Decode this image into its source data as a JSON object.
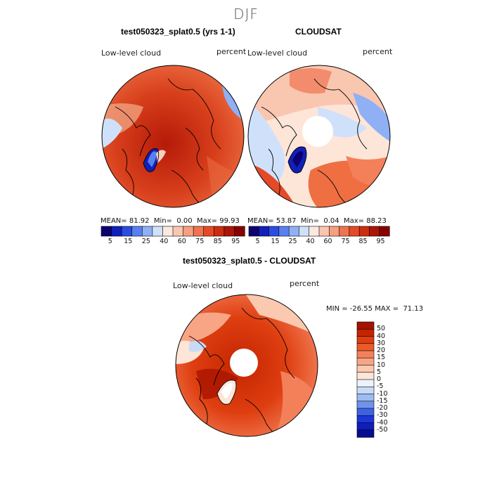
{
  "main_title": "DJF",
  "panels": [
    {
      "title": "test050323_splat0.5 (yrs 1-1)",
      "variable": "Low-level cloud",
      "units": "percent",
      "mean_label": "MEAN=",
      "mean": "81.92",
      "min_label": "Min=",
      "min": "0.00",
      "max_label": "Max=",
      "max": "99.93"
    },
    {
      "title": "CLOUDSAT",
      "variable": "Low-level cloud",
      "units": "percent",
      "mean_label": "MEAN=",
      "mean": "53.87",
      "min_label": "Min=",
      "min": "0.04",
      "max_label": "Max=",
      "max": "88.23"
    },
    {
      "title": "test050323_splat0.5 - CLOUDSAT",
      "variable": "Low-level cloud",
      "units": "percent",
      "min_max_text": "MIN = -26.55 MAX =  71.13"
    }
  ],
  "colorbar_top": {
    "colors": [
      "#0d0070",
      "#1020b8",
      "#2a4de0",
      "#5a7ff0",
      "#8fb0f5",
      "#cfe1fa",
      "#fbe8e0",
      "#f9c6b0",
      "#f5a080",
      "#ef7450",
      "#e44a28",
      "#cc2d10",
      "#aa1505",
      "#860000"
    ],
    "tick_labels": [
      "5",
      "15",
      "25",
      "40",
      "60",
      "75",
      "85",
      "95"
    ]
  },
  "colorbar_diff": {
    "colors": [
      "#a51200",
      "#c42500",
      "#de3e10",
      "#ec5a28",
      "#f4805a",
      "#f8a585",
      "#fbc8b0",
      "#fde5d8",
      "#eef3fb",
      "#c8dbf6",
      "#9fbcf2",
      "#6e93ec",
      "#3f62e5",
      "#1d36d6",
      "#0f1dbd",
      "#080c8f"
    ],
    "tick_labels": [
      "50",
      "40",
      "30",
      "20",
      "15",
      "10",
      "5",
      "0",
      "-5",
      "-10",
      "-15",
      "-20",
      "-30",
      "-40",
      "-50"
    ]
  }
}
